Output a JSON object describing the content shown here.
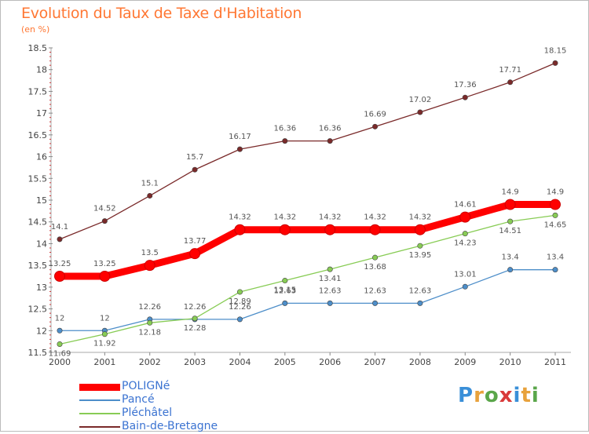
{
  "title": "Evolution du Taux de Taxe d'Habitation",
  "subtitle": "(en %)",
  "logo": {
    "text": "Proxiti",
    "letters": [
      {
        "ch": "P",
        "color": "#3a8fd8"
      },
      {
        "ch": "r",
        "color": "#e8a23c"
      },
      {
        "ch": "o",
        "color": "#5aa64a"
      },
      {
        "ch": "x",
        "color": "#d93a3a"
      },
      {
        "ch": "i",
        "color": "#3a8fd8"
      },
      {
        "ch": "t",
        "color": "#e8a23c"
      },
      {
        "ch": "i",
        "color": "#5aa64a"
      }
    ]
  },
  "chart_data": {
    "type": "line",
    "title": "Evolution du Taux de Taxe d'Habitation",
    "ylabel": "(en %)",
    "xlabel": "",
    "ylim": [
      11.5,
      18.5
    ],
    "yticks": [
      "11.5",
      "12",
      "12.5",
      "13",
      "13.5",
      "14",
      "14.5",
      "15",
      "15.5",
      "16",
      "16.5",
      "17",
      "17.5",
      "18",
      "18.5"
    ],
    "x": [
      "2000",
      "2001",
      "2002",
      "2003",
      "2004",
      "2005",
      "2006",
      "2007",
      "2008",
      "2009",
      "2010",
      "2011"
    ],
    "grid": false,
    "legend": "bottom-left",
    "series": [
      {
        "name": "POLIGNé",
        "color": "#ff0000",
        "labels": [
          "13.25",
          "13.25",
          "13.5",
          "13.77",
          "14.32",
          "14.32",
          "14.32",
          "14.32",
          "14.32",
          "14.61",
          "14.9",
          "14.9"
        ],
        "values": [
          13.25,
          13.25,
          13.5,
          13.77,
          14.32,
          14.32,
          14.32,
          14.32,
          14.32,
          14.61,
          14.9,
          14.9
        ]
      },
      {
        "name": "Pancé",
        "color": "#4d8ec9",
        "labels": [
          "12",
          "12",
          "12.26",
          "12.26",
          "12.26",
          "12.63",
          "12.63",
          "12.63",
          "12.63",
          "13.01",
          "13.4",
          "13.4"
        ],
        "values": [
          12,
          12,
          12.26,
          12.26,
          12.26,
          12.63,
          12.63,
          12.63,
          12.63,
          13.01,
          13.4,
          13.4
        ]
      },
      {
        "name": "Pléchâtel",
        "color": "#88cc55",
        "labels": [
          "11.69",
          "11.92",
          "12.18",
          "12.28",
          "12.89",
          "13.15",
          "13.41",
          "13.68",
          "13.95",
          "14.23",
          "14.51",
          "14.65"
        ],
        "values": [
          11.69,
          11.92,
          12.18,
          12.28,
          12.89,
          13.15,
          13.41,
          13.68,
          13.95,
          14.23,
          14.51,
          14.65
        ]
      },
      {
        "name": "Bain-de-Bretagne",
        "color": "#7a2a2a",
        "labels": [
          "14.1",
          "14.52",
          "15.1",
          "15.7",
          "16.17",
          "16.36",
          "16.36",
          "16.69",
          "17.02",
          "17.36",
          "17.71",
          "18.15"
        ],
        "values": [
          14.1,
          14.52,
          15.1,
          15.7,
          16.17,
          16.36,
          16.36,
          16.69,
          17.02,
          17.36,
          17.71,
          18.15
        ]
      }
    ]
  }
}
